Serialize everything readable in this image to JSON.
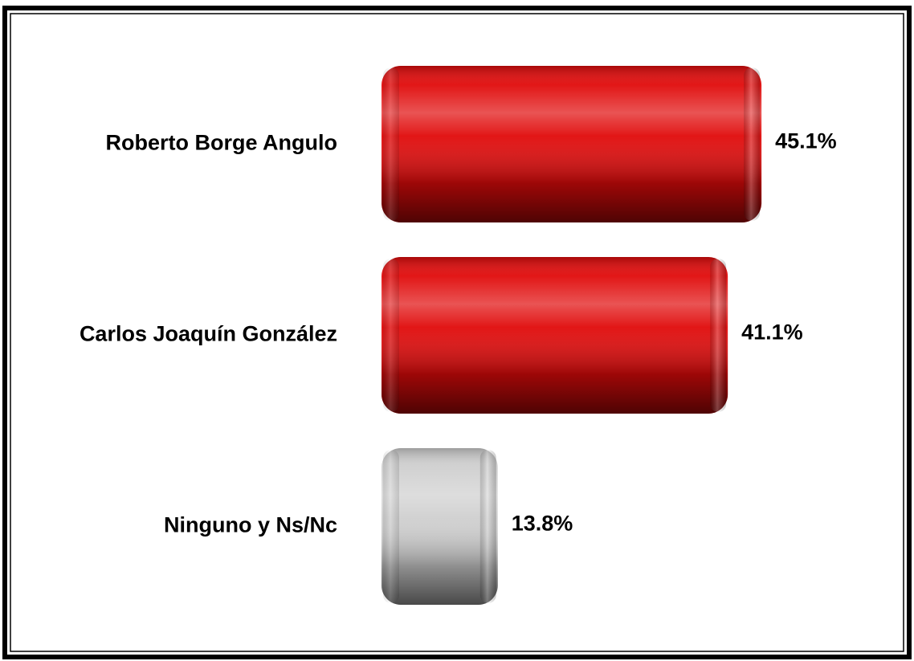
{
  "chart_data": {
    "type": "bar",
    "orientation": "horizontal",
    "categories": [
      "Roberto Borge Angulo",
      "Carlos Joaquín González",
      "Ninguno y Ns/Nc"
    ],
    "values": [
      45.1,
      41.1,
      13.8
    ],
    "value_labels": [
      "45.1%",
      "41.1%",
      "13.8%"
    ],
    "colors": [
      "#e00a0a",
      "#e00a0a",
      "#cfcfcf"
    ]
  }
}
